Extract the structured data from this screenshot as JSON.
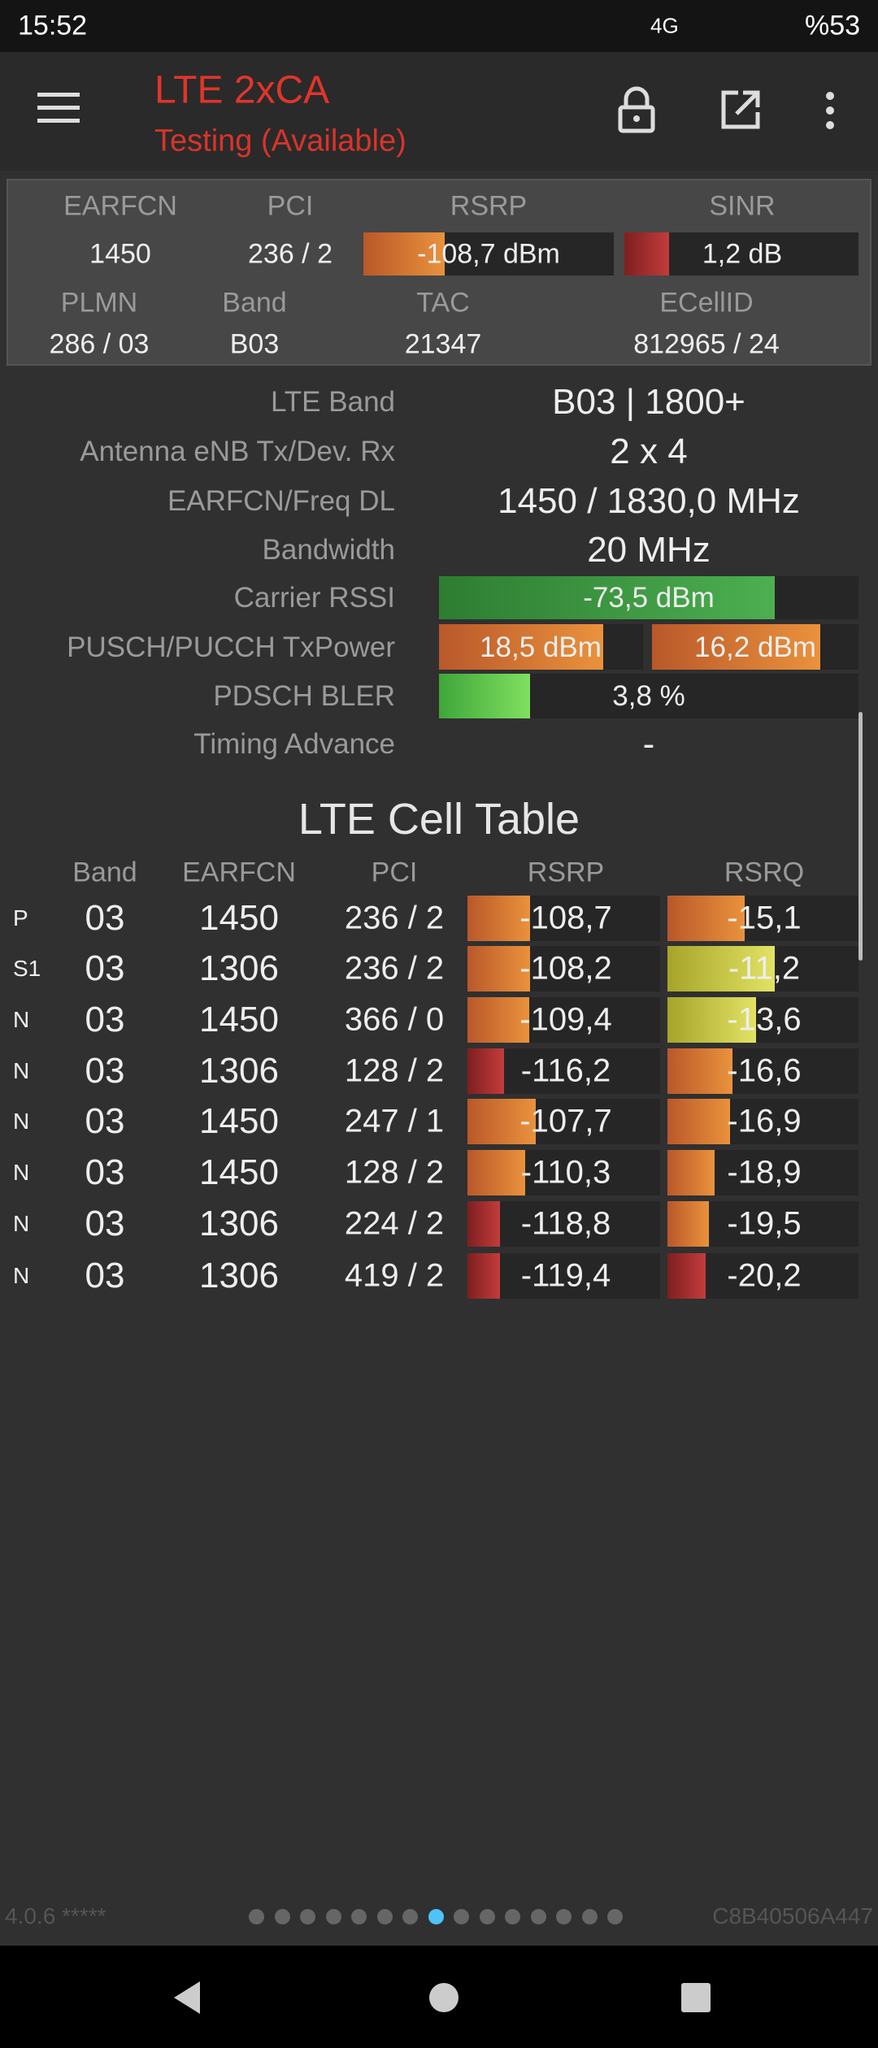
{
  "status_bar": {
    "time": "15:52",
    "network": "4G",
    "battery": "%53"
  },
  "toolbar": {
    "title": "LTE 2xCA",
    "subtitle": "Testing (Available)"
  },
  "summary": {
    "headers1": [
      "EARFCN",
      "PCI",
      "RSRP",
      "SINR"
    ],
    "values1": [
      "1450",
      "236 / 2",
      "-108,7 dBm",
      "1,2 dB"
    ],
    "headers2": [
      "PLMN",
      "Band",
      "TAC",
      "ECellID"
    ],
    "values2": [
      "286 / 03",
      "B03",
      "21347",
      "812965 / 24"
    ]
  },
  "details": [
    {
      "label": "LTE Band",
      "values": [
        "B03 | 1800+"
      ]
    },
    {
      "label": "Antenna eNB Tx/Dev. Rx",
      "values": [
        "2 x 4"
      ]
    },
    {
      "label": "EARFCN/Freq DL",
      "values": [
        "1450 / 1830,0 MHz"
      ]
    },
    {
      "label": "Bandwidth",
      "values": [
        "20 MHz"
      ]
    },
    {
      "label": "Carrier RSSI",
      "values": [
        "-73,5 dBm"
      ]
    },
    {
      "label": "PUSCH/PUCCH TxPower",
      "values": [
        "18,5 dBm",
        "16,2 dBm"
      ]
    },
    {
      "label": "PDSCH BLER",
      "values": [
        "3,8 %"
      ]
    },
    {
      "label": "Timing Advance",
      "values": [
        "-"
      ]
    }
  ],
  "cell_table": {
    "title": "LTE Cell Table",
    "columns": [
      "Band",
      "EARFCN",
      "PCI",
      "RSRP",
      "RSRQ"
    ],
    "rows": [
      [
        "P",
        "03",
        "1450",
        "236 / 2",
        "-108,7",
        "-15,1"
      ],
      [
        "S1",
        "03",
        "1306",
        "236 / 2",
        "-108,2",
        "-11,2"
      ],
      [
        "N",
        "03",
        "1450",
        "366 / 0",
        "-109,4",
        "-13,6"
      ],
      [
        "N",
        "03",
        "1306",
        "128 / 2",
        "-116,2",
        "-16,6"
      ],
      [
        "N",
        "03",
        "1450",
        "247 / 1",
        "-107,7",
        "-16,9"
      ],
      [
        "N",
        "03",
        "1450",
        "128 / 2",
        "-110,3",
        "-18,9"
      ],
      [
        "N",
        "03",
        "1306",
        "224 / 2",
        "-118,8",
        "-19,5"
      ],
      [
        "N",
        "03",
        "1306",
        "419 / 2",
        "-119,4",
        "-20,2"
      ]
    ]
  },
  "footer": {
    "version": "4.0.6 *****",
    "id": "C8B40506A447"
  }
}
